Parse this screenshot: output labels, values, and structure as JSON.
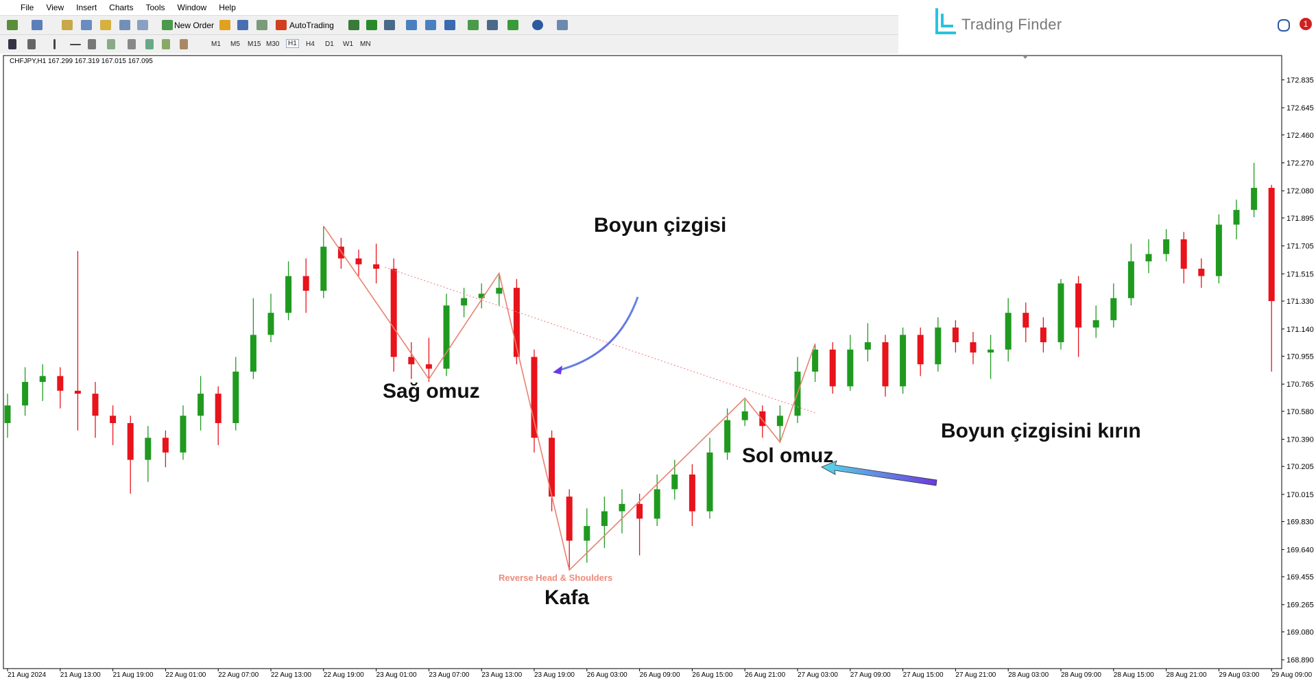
{
  "window": {
    "menu": [
      "File",
      "View",
      "Insert",
      "Charts",
      "Tools",
      "Window",
      "Help"
    ],
    "new_order": "New Order",
    "autotrading": "AutoTrading",
    "timeframes": [
      "M1",
      "M5",
      "M15",
      "M30",
      "H1",
      "H4",
      "D1",
      "W1",
      "MN"
    ],
    "brand": "Trading Finder",
    "notifications": "1"
  },
  "chart_data": {
    "type": "candlestick",
    "symbol_info": "CHFJPY,H1  167.299 167.319 167.015 167.095",
    "categories": [
      "21 Aug 2024",
      null,
      null,
      "21 Aug 13:00",
      null,
      null,
      "21 Aug 19:00",
      null,
      null,
      "22 Aug 01:00",
      null,
      null,
      "22 Aug 07:00",
      null,
      null,
      "22 Aug 13:00",
      null,
      null,
      "22 Aug 19:00",
      null,
      null,
      "23 Aug 01:00",
      null,
      null,
      "23 Aug 07:00",
      null,
      null,
      "23 Aug 13:00",
      null,
      null,
      "23 Aug 19:00",
      null,
      null,
      "26 Aug 03:00",
      null,
      null,
      "26 Aug 09:00",
      null,
      null,
      "26 Aug 15:00",
      null,
      null,
      "26 Aug 21:00",
      null,
      null,
      "27 Aug 03:00",
      null,
      null,
      "27 Aug 09:00",
      null,
      null,
      "27 Aug 15:00",
      null,
      null,
      "27 Aug 21:00",
      null,
      null,
      "28 Aug 03:00",
      null,
      null,
      "28 Aug 09:00",
      null,
      null,
      "28 Aug 15:00",
      null,
      null,
      "28 Aug 21:00",
      null,
      null,
      "29 Aug 03:00",
      null,
      null,
      "29 Aug 09:00"
    ],
    "open": [
      170.5,
      170.62,
      170.78,
      170.82,
      170.72,
      170.7,
      170.55,
      170.5,
      170.25,
      170.4,
      170.3,
      170.55,
      170.7,
      170.5,
      170.85,
      171.1,
      171.25,
      171.5,
      171.4,
      171.7,
      171.62,
      171.58,
      171.55,
      170.95,
      170.9,
      170.87,
      171.3,
      171.35,
      171.38,
      171.42,
      170.95,
      170.4,
      170.0,
      169.7,
      169.8,
      169.9,
      169.95,
      169.85,
      170.05,
      170.15,
      169.9,
      170.3,
      170.52,
      170.58,
      170.48,
      170.55,
      170.85,
      171.0,
      170.75,
      171.0,
      171.05,
      170.75,
      171.1,
      170.9,
      171.15,
      171.05,
      170.98,
      171.0,
      171.25,
      171.15,
      171.05,
      171.45,
      171.15,
      171.2,
      171.35,
      171.6,
      171.65,
      171.75,
      171.55,
      171.5,
      171.85,
      171.95,
      172.1
    ],
    "high": [
      170.7,
      170.88,
      170.9,
      170.88,
      171.67,
      170.78,
      170.62,
      170.55,
      170.48,
      170.45,
      170.62,
      170.82,
      170.75,
      170.95,
      171.35,
      171.38,
      171.6,
      171.62,
      171.84,
      171.76,
      171.68,
      171.72,
      171.62,
      171.05,
      171.08,
      171.38,
      171.42,
      171.45,
      171.52,
      171.48,
      171.0,
      170.45,
      170.05,
      169.92,
      170.0,
      170.05,
      170.02,
      170.15,
      170.25,
      170.22,
      170.4,
      170.6,
      170.66,
      170.62,
      170.62,
      170.95,
      171.04,
      171.05,
      171.1,
      171.18,
      171.1,
      171.15,
      171.15,
      171.22,
      171.2,
      171.12,
      171.1,
      171.35,
      171.32,
      171.22,
      171.48,
      171.5,
      171.3,
      171.45,
      171.72,
      171.75,
      171.82,
      171.8,
      171.62,
      171.92,
      172.02,
      172.27,
      172.12
    ],
    "low": [
      170.4,
      170.55,
      170.65,
      170.6,
      170.45,
      170.4,
      170.35,
      170.02,
      170.1,
      170.2,
      170.25,
      170.45,
      170.35,
      170.45,
      170.8,
      171.05,
      171.2,
      171.25,
      171.35,
      171.55,
      171.5,
      171.45,
      170.85,
      170.8,
      170.78,
      170.82,
      171.22,
      171.28,
      171.3,
      170.9,
      170.3,
      169.9,
      169.5,
      169.55,
      169.65,
      169.75,
      169.6,
      169.8,
      169.98,
      169.8,
      169.85,
      170.25,
      170.48,
      170.4,
      170.38,
      170.5,
      170.78,
      170.7,
      170.72,
      170.92,
      170.68,
      170.7,
      170.82,
      170.85,
      170.98,
      170.9,
      170.8,
      170.92,
      171.05,
      170.98,
      171.0,
      170.95,
      171.08,
      171.15,
      171.3,
      171.52,
      171.6,
      171.45,
      171.42,
      171.45,
      171.75,
      171.9,
      170.85
    ],
    "close": [
      170.62,
      170.78,
      170.82,
      170.72,
      170.7,
      170.55,
      170.5,
      170.25,
      170.4,
      170.3,
      170.55,
      170.7,
      170.5,
      170.85,
      171.1,
      171.25,
      171.5,
      171.4,
      171.7,
      171.62,
      171.58,
      171.55,
      170.95,
      170.9,
      170.87,
      171.3,
      171.35,
      171.38,
      171.42,
      170.95,
      170.4,
      170.0,
      169.7,
      169.8,
      169.9,
      169.95,
      169.85,
      170.05,
      170.15,
      169.9,
      170.3,
      170.52,
      170.58,
      170.48,
      170.55,
      170.85,
      171.0,
      170.75,
      171.0,
      171.05,
      170.75,
      171.1,
      170.9,
      171.15,
      171.05,
      170.98,
      171.0,
      171.25,
      171.15,
      171.05,
      171.45,
      171.15,
      171.2,
      171.35,
      171.6,
      171.65,
      171.75,
      171.55,
      171.5,
      171.85,
      171.95,
      172.1,
      171.33
    ],
    "up_color": "#1f9a1f",
    "down_color": "#e8131b",
    "ylim": [
      168.83,
      173.0
    ],
    "yticks": [
      {
        "value": 172.835,
        "label": "172.835"
      },
      {
        "value": 172.645,
        "label": "172.645"
      },
      {
        "value": 172.46,
        "label": "172.460"
      },
      {
        "value": 172.27,
        "label": "172.270"
      },
      {
        "value": 172.08,
        "label": "172.080"
      },
      {
        "value": 171.895,
        "label": "171.895"
      },
      {
        "value": 171.705,
        "label": "171.705"
      },
      {
        "value": 171.515,
        "label": "171.515"
      },
      {
        "value": 171.33,
        "label": "171.330"
      },
      {
        "value": 171.14,
        "label": "171.140"
      },
      {
        "value": 170.955,
        "label": "170.955"
      },
      {
        "value": 170.765,
        "label": "170.765"
      },
      {
        "value": 170.58,
        "label": "170.580"
      },
      {
        "value": 170.39,
        "label": "170.390"
      },
      {
        "value": 170.205,
        "label": "170.205"
      },
      {
        "value": 170.015,
        "label": "170.015"
      },
      {
        "value": 169.83,
        "label": "169.830"
      },
      {
        "value": 169.64,
        "label": "169.640"
      },
      {
        "value": 169.455,
        "label": "169.455"
      },
      {
        "value": 169.265,
        "label": "169.265"
      },
      {
        "value": 169.08,
        "label": "169.080"
      },
      {
        "value": 168.89,
        "label": "168.890"
      }
    ],
    "grid": false,
    "zigzag": {
      "name": "Reverse Head & Shoulders",
      "color": "#e9806f",
      "x": [
        18,
        24,
        28,
        32,
        42,
        44,
        46
      ],
      "y": [
        171.84,
        170.8,
        171.52,
        169.5,
        170.67,
        170.37,
        171.04
      ]
    },
    "neckline": {
      "color": "#f08a8a",
      "x": [
        21.5,
        46
      ],
      "y": [
        171.56,
        170.57
      ]
    },
    "annotations": {
      "neckline": "Boyun çizgisi",
      "right_shoulder": "Sağ omuz",
      "head": "Kafa",
      "left_shoulder": "Sol omuz",
      "breakout": "Boyun çizgisini kırın"
    }
  }
}
